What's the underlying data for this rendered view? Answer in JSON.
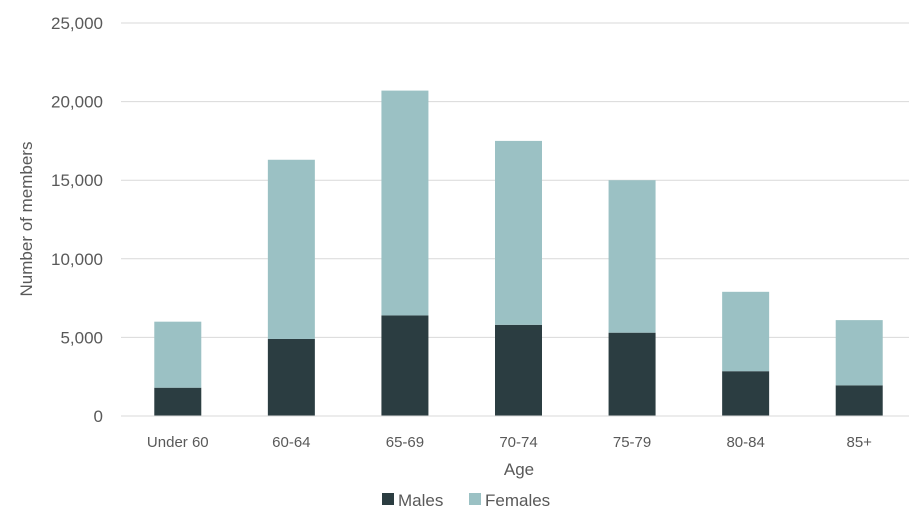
{
  "chart_data": {
    "type": "bar",
    "stacked": true,
    "title": "",
    "xlabel": "Age",
    "ylabel": "Number of members",
    "categories": [
      "Under 60",
      "60-64",
      "65-69",
      "70-74",
      "75-79",
      "80-84",
      "85+"
    ],
    "series": [
      {
        "name": "Males",
        "values": [
          1800,
          4900,
          6400,
          5800,
          5300,
          2850,
          1950
        ],
        "color": "#2b3d41"
      },
      {
        "name": "Females",
        "values": [
          4200,
          11400,
          14300,
          11700,
          9700,
          5050,
          4150
        ],
        "color": "#9bc1c4"
      }
    ],
    "ylim": [
      0,
      25000
    ],
    "yticks": [
      0,
      5000,
      10000,
      15000,
      20000,
      25000
    ],
    "ytick_labels": [
      "0",
      "5,000",
      "10,000",
      "15,000",
      "20,000",
      "25,000"
    ],
    "grid": true,
    "gridline_color": "#d9d9d9",
    "legend": "bottom-center"
  }
}
